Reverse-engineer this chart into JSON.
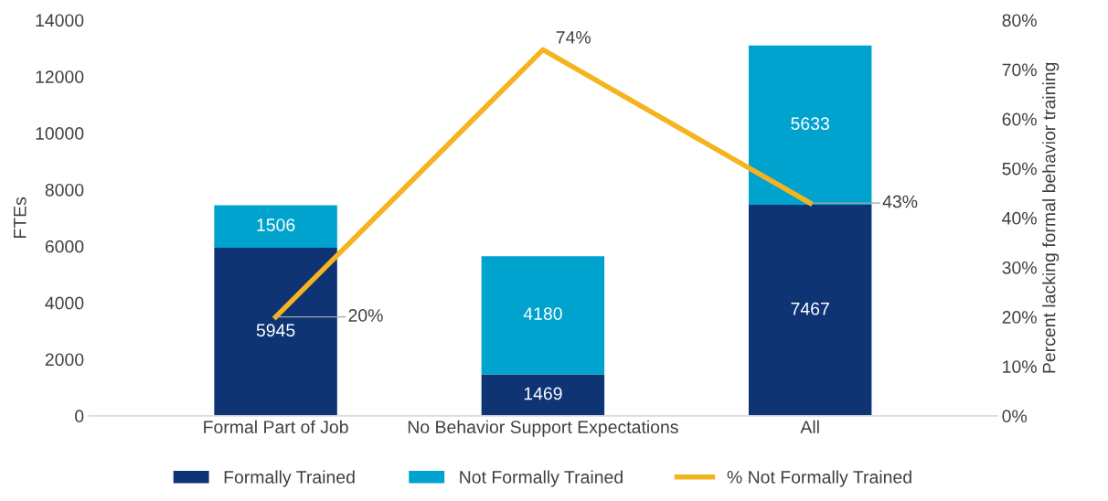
{
  "chart_data": {
    "type": "bar",
    "stacked": true,
    "categories": [
      "Formal Part of Job",
      "No Behavior Support Expectations",
      "All"
    ],
    "ylabel": "FTEs",
    "y2label": "Percent lacking formal behavior training",
    "ylim": [
      0,
      14000
    ],
    "yticks": [
      0,
      2000,
      4000,
      6000,
      8000,
      10000,
      12000,
      14000
    ],
    "y2lim": [
      0,
      80
    ],
    "y2ticks": [
      {
        "value": 0,
        "label": "0%"
      },
      {
        "value": 10,
        "label": "10%"
      },
      {
        "value": 20,
        "label": "20%"
      },
      {
        "value": 30,
        "label": "30%"
      },
      {
        "value": 40,
        "label": "40%"
      },
      {
        "value": 50,
        "label": "50%"
      },
      {
        "value": 60,
        "label": "60%"
      },
      {
        "value": 70,
        "label": "70%"
      },
      {
        "value": 80,
        "label": "80%"
      }
    ],
    "grid": false,
    "legend": "bottom",
    "data_labels": true,
    "series": [
      {
        "name": "Formally Trained",
        "color": "#0e3474",
        "values": [
          5945,
          1469,
          7467
        ]
      },
      {
        "name": "Not Formally Trained",
        "color": "#00a2ce",
        "values": [
          1506,
          4180,
          5633
        ]
      },
      {
        "name": "% Not Formally Trained",
        "type": "line",
        "axis": "y2",
        "color": "#f5b41e",
        "values": [
          20,
          74,
          43
        ],
        "value_labels": [
          "20%",
          "74%",
          "43%"
        ],
        "marker": "none"
      }
    ]
  }
}
